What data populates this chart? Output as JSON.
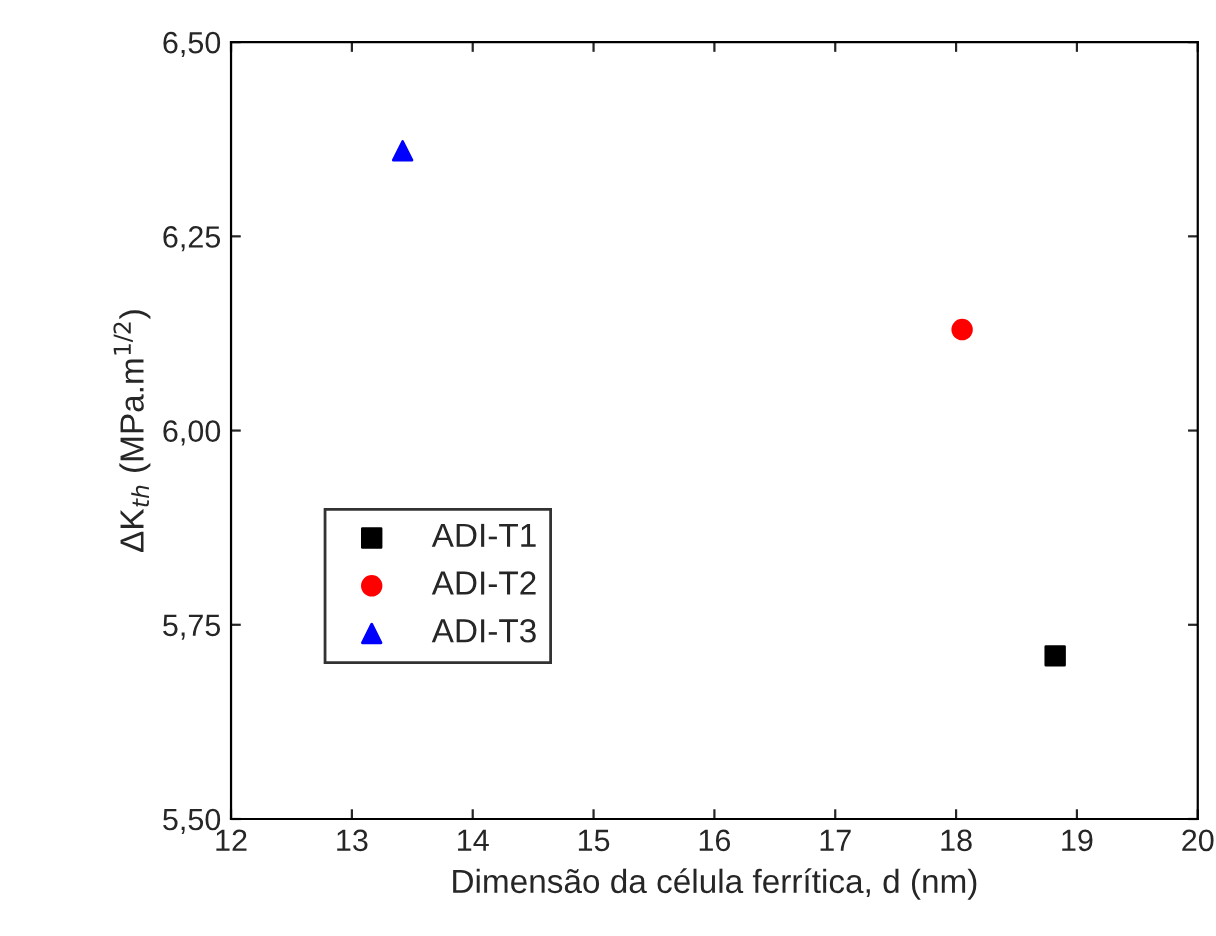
{
  "chart_data": {
    "type": "scatter",
    "xlabel": "Dimensão da célula ferrítica, d (nm)",
    "ylabel": "ΔK$_{th}$ (MPa.m$^{1/2}$)",
    "xlim": [
      12,
      20
    ],
    "xticks": [
      12,
      13,
      14,
      15,
      16,
      17,
      18,
      19,
      20
    ],
    "ylim": [
      5.5,
      6.5
    ],
    "yticks": [
      {
        "value": 5.5,
        "label": "5,50"
      },
      {
        "value": 5.75,
        "label": "5,75"
      },
      {
        "value": 6.0,
        "label": "6,00"
      },
      {
        "value": 6.25,
        "label": "6,25"
      },
      {
        "value": 6.5,
        "label": "6,50"
      }
    ],
    "grid": false,
    "legend": "center left",
    "series": [
      {
        "name": "ADI-T1",
        "color": "#000000",
        "marker": "square",
        "x": [
          18.82
        ],
        "values": [
          5.71
        ]
      },
      {
        "name": "ADI-T2",
        "color": "#ff0000",
        "marker": "circle",
        "x": [
          18.05
        ],
        "values": [
          6.13
        ]
      },
      {
        "name": "ADI-T3",
        "color": "#0000ff",
        "marker": "triangle",
        "x": [
          13.42
        ],
        "values": [
          6.36
        ]
      }
    ]
  }
}
